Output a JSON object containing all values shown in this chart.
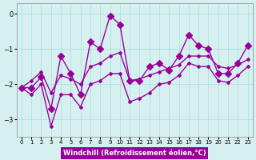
{
  "xlabel": "Windchill (Refroidissement éolien,°C)",
  "ylabel": "",
  "background_color": "#d6f0f0",
  "line_color": "#990099",
  "x_data": [
    0,
    1,
    2,
    3,
    4,
    5,
    6,
    7,
    8,
    9,
    10,
    11,
    12,
    13,
    14,
    15,
    16,
    17,
    18,
    19,
    20,
    21,
    22,
    23
  ],
  "y_main": [
    -2.1,
    -2.1,
    -1.8,
    -2.7,
    -1.2,
    -1.7,
    -2.3,
    -0.8,
    -1.0,
    -0.05,
    -0.3,
    -1.9,
    -1.9,
    -1.5,
    -1.4,
    -1.6,
    -1.2,
    -0.6,
    -0.9,
    -1.0,
    -1.7,
    -1.7,
    -1.4,
    -0.9
  ],
  "y_upper": [
    -2.1,
    -1.9,
    -1.65,
    -2.25,
    -1.75,
    -1.85,
    -2.0,
    -1.5,
    -1.4,
    -1.2,
    -1.1,
    -1.9,
    -1.85,
    -1.75,
    -1.65,
    -1.55,
    -1.45,
    -1.2,
    -1.2,
    -1.2,
    -1.5,
    -1.55,
    -1.45,
    -1.3
  ],
  "y_lower": [
    -2.1,
    -2.3,
    -2.0,
    -3.2,
    -2.3,
    -2.3,
    -2.65,
    -2.0,
    -1.9,
    -1.7,
    -1.7,
    -2.5,
    -2.4,
    -2.25,
    -2.0,
    -1.95,
    -1.75,
    -1.4,
    -1.5,
    -1.5,
    -1.9,
    -1.95,
    -1.75,
    -1.5
  ],
  "ylim": [
    -3.5,
    0.3
  ],
  "xlim": [
    -0.5,
    23.5
  ],
  "yticks": [
    0,
    -1,
    -2,
    -3
  ],
  "xticks": [
    0,
    1,
    2,
    3,
    4,
    5,
    6,
    7,
    8,
    9,
    10,
    11,
    12,
    13,
    14,
    15,
    16,
    17,
    18,
    19,
    20,
    21,
    22,
    23
  ],
  "grid_color": "#aadddd",
  "xlabel_bg": "#990099",
  "xlabel_fg": "#ffffff",
  "marker": "D",
  "markersize": 3,
  "linewidth": 1.0
}
